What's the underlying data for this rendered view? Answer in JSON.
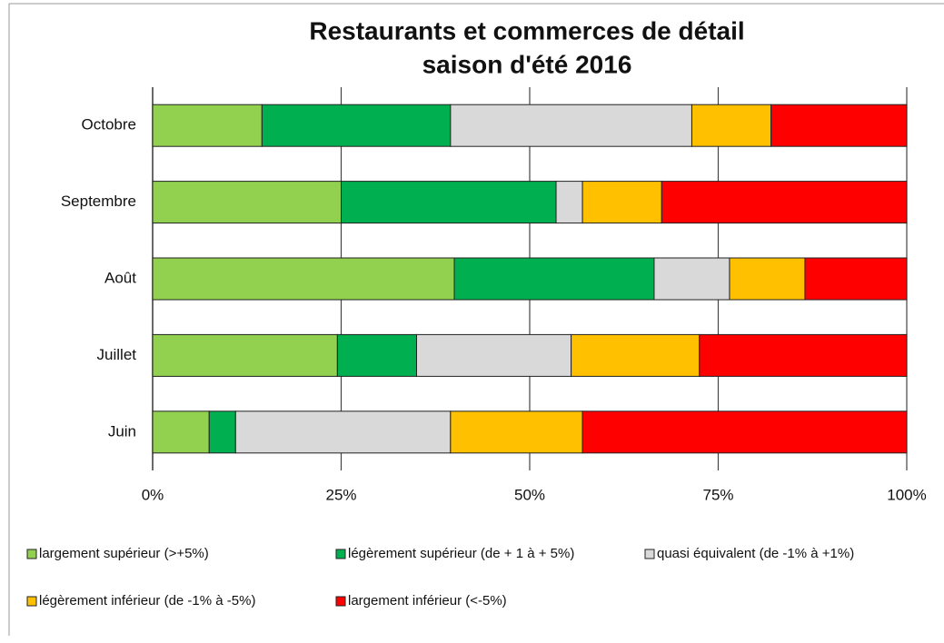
{
  "chart_data": {
    "type": "stacked_barh",
    "title": "Restaurants et commerces de détail",
    "subtitle": "saison d'été 2016",
    "categories": [
      "Octobre",
      "Septembre",
      "Août",
      "Juillet",
      "Juin"
    ],
    "series": [
      {
        "name": "largement supérieur (>+5%)",
        "color": "#92d050",
        "values": [
          14.5,
          25,
          40,
          24.5,
          7.5
        ]
      },
      {
        "name": "légèrement supérieur (de + 1 à + 5%)",
        "color": "#00b050",
        "values": [
          25,
          28.5,
          26.5,
          10.5,
          3.5
        ]
      },
      {
        "name": "quasi équivalent (de  -1% à +1%)",
        "color": "#d9d9d9",
        "values": [
          32,
          3.5,
          10,
          20.5,
          28.5
        ]
      },
      {
        "name": "légèrement inférieur (de -1% à -5%)",
        "color": "#ffc000",
        "values": [
          10.5,
          10.5,
          10,
          17,
          17.5
        ]
      },
      {
        "name": "largement inférieur (<-5%)",
        "color": "#ff0000",
        "values": [
          18,
          32.5,
          13.5,
          27.5,
          43
        ]
      }
    ],
    "xlim": [
      0,
      100
    ],
    "xticks": [
      {
        "value": 0,
        "label": "0%"
      },
      {
        "value": 25,
        "label": "25%"
      },
      {
        "value": 50,
        "label": "50%"
      },
      {
        "value": 75,
        "label": "75%"
      },
      {
        "value": 100,
        "label": "100%"
      }
    ],
    "grid": true,
    "legend": "bottom"
  }
}
